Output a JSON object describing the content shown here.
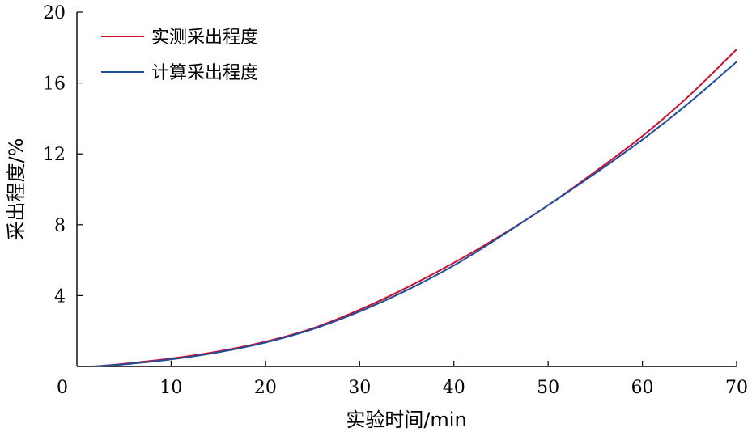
{
  "chart_data": {
    "type": "line",
    "title": "",
    "xlabel": "实验时间/min",
    "ylabel": "采出程度/%",
    "xlim": [
      0,
      70
    ],
    "ylim": [
      0,
      20
    ],
    "x_ticks": [
      0,
      10,
      20,
      30,
      40,
      50,
      60,
      70
    ],
    "y_ticks": [
      4,
      8,
      12,
      16,
      20
    ],
    "grid": false,
    "legend_position": "top-left",
    "series": [
      {
        "name": "实测采出程度",
        "color": "#c8102e",
        "x": [
          1.7,
          5,
          10,
          15,
          20,
          25,
          30,
          35,
          40,
          45,
          50,
          55,
          60,
          65,
          70
        ],
        "y": [
          0,
          0.15,
          0.45,
          0.85,
          1.4,
          2.15,
          3.2,
          4.45,
          5.85,
          7.4,
          9.1,
          11,
          13,
          15.3,
          17.9
        ]
      },
      {
        "name": "计算采出程度",
        "color": "#1f4e9c",
        "x": [
          1.7,
          5,
          10,
          15,
          20,
          25,
          30,
          35,
          40,
          45,
          50,
          55,
          60,
          65,
          70
        ],
        "y": [
          0,
          0.12,
          0.4,
          0.8,
          1.35,
          2.1,
          3.1,
          4.3,
          5.7,
          7.35,
          9.1,
          10.9,
          12.8,
          14.9,
          17.2
        ]
      }
    ]
  }
}
